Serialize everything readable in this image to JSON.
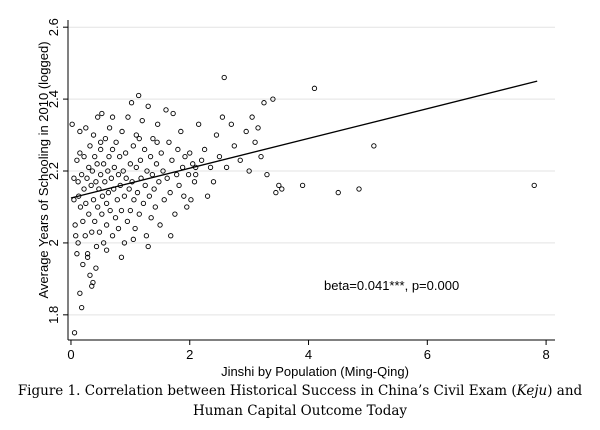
{
  "chart_data": {
    "type": "scatter",
    "xlabel": "Jinshi by Population (Ming-Qing)",
    "ylabel": "Average Years of Schooling in 2010 (logged)",
    "xlim": [
      -0.05,
      8.15
    ],
    "ylim": [
      1.73,
      2.62
    ],
    "xticks": [
      0,
      2,
      4,
      6,
      8
    ],
    "yticks": [
      1.8,
      2,
      2.2,
      2.4,
      2.6
    ],
    "ytick_labels": [
      "1.8",
      "2",
      "2.2",
      "2.4",
      "2.6"
    ],
    "xtick_labels": [
      "0",
      "2",
      "4",
      "6",
      "8"
    ],
    "grid": "horizontal",
    "annotation": "beta=0.041***, p=0.000",
    "fit_line": {
      "x": [
        0,
        7.85
      ],
      "y": [
        2.125,
        2.45
      ]
    },
    "points": [
      [
        0.02,
        2.33
      ],
      [
        0.05,
        2.18
      ],
      [
        0.05,
        2.12
      ],
      [
        0.07,
        2.05
      ],
      [
        0.08,
        2.02
      ],
      [
        0.1,
        1.97
      ],
      [
        0.1,
        2.23
      ],
      [
        0.12,
        2.17
      ],
      [
        0.12,
        2.0
      ],
      [
        0.13,
        2.13
      ],
      [
        0.15,
        1.86
      ],
      [
        0.15,
        2.25
      ],
      [
        0.16,
        2.1
      ],
      [
        0.18,
        2.19
      ],
      [
        0.2,
        2.06
      ],
      [
        0.2,
        1.94
      ],
      [
        0.22,
        2.24
      ],
      [
        0.22,
        2.15
      ],
      [
        0.24,
        2.02
      ],
      [
        0.25,
        2.32
      ],
      [
        0.25,
        2.11
      ],
      [
        0.27,
        2.18
      ],
      [
        0.28,
        1.97
      ],
      [
        0.3,
        2.21
      ],
      [
        0.3,
        2.08
      ],
      [
        0.32,
        2.27
      ],
      [
        0.32,
        1.91
      ],
      [
        0.34,
        2.16
      ],
      [
        0.35,
        2.03
      ],
      [
        0.36,
        2.2
      ],
      [
        0.37,
        1.89
      ],
      [
        0.38,
        2.3
      ],
      [
        0.38,
        2.12
      ],
      [
        0.4,
        2.24
      ],
      [
        0.4,
        2.06
      ],
      [
        0.42,
        2.17
      ],
      [
        0.43,
        1.99
      ],
      [
        0.44,
        2.22
      ],
      [
        0.45,
        2.35
      ],
      [
        0.45,
        2.1
      ],
      [
        0.47,
        2.15
      ],
      [
        0.48,
        2.03
      ],
      [
        0.5,
        2.26
      ],
      [
        0.5,
        2.19
      ],
      [
        0.52,
        2.08
      ],
      [
        0.52,
        2.36
      ],
      [
        0.53,
        2.13
      ],
      [
        0.55,
        2.0
      ],
      [
        0.55,
        2.22
      ],
      [
        0.57,
        2.17
      ],
      [
        0.58,
        2.29
      ],
      [
        0.6,
        2.11
      ],
      [
        0.6,
        2.05
      ],
      [
        0.62,
        2.2
      ],
      [
        0.63,
        2.14
      ],
      [
        0.64,
        2.24
      ],
      [
        0.65,
        2.32
      ],
      [
        0.66,
        2.09
      ],
      [
        0.68,
        2.18
      ],
      [
        0.7,
        2.02
      ],
      [
        0.7,
        2.26
      ],
      [
        0.72,
        2.15
      ],
      [
        0.73,
        2.21
      ],
      [
        0.75,
        2.07
      ],
      [
        0.76,
        2.28
      ],
      [
        0.78,
        2.12
      ],
      [
        0.8,
        2.19
      ],
      [
        0.8,
        2.04
      ],
      [
        0.82,
        2.24
      ],
      [
        0.83,
        2.16
      ],
      [
        0.85,
        2.09
      ],
      [
        0.86,
        2.31
      ],
      [
        0.88,
        2.2
      ],
      [
        0.9,
        2.13
      ],
      [
        0.9,
        2.0
      ],
      [
        0.92,
        2.25
      ],
      [
        0.93,
        2.18
      ],
      [
        0.95,
        2.06
      ],
      [
        0.96,
        2.35
      ],
      [
        0.98,
        2.15
      ],
      [
        1.0,
        2.22
      ],
      [
        1.0,
        2.09
      ],
      [
        1.02,
        2.39
      ],
      [
        1.03,
        2.17
      ],
      [
        1.05,
        2.27
      ],
      [
        1.06,
        2.12
      ],
      [
        1.08,
        2.04
      ],
      [
        1.1,
        2.21
      ],
      [
        1.1,
        2.3
      ],
      [
        1.12,
        2.14
      ],
      [
        1.14,
        2.41
      ],
      [
        1.15,
        2.08
      ],
      [
        1.17,
        2.23
      ],
      [
        1.18,
        2.18
      ],
      [
        1.2,
        2.34
      ],
      [
        1.22,
        2.11
      ],
      [
        1.24,
        2.26
      ],
      [
        1.25,
        2.16
      ],
      [
        1.27,
        2.02
      ],
      [
        1.28,
        2.2
      ],
      [
        1.3,
        2.38
      ],
      [
        1.32,
        2.13
      ],
      [
        1.34,
        2.24
      ],
      [
        1.35,
        2.07
      ],
      [
        1.37,
        2.19
      ],
      [
        1.38,
        2.29
      ],
      [
        1.4,
        2.15
      ],
      [
        1.42,
        2.1
      ],
      [
        1.44,
        2.22
      ],
      [
        1.46,
        2.33
      ],
      [
        1.48,
        2.17
      ],
      [
        1.5,
        2.05
      ],
      [
        1.52,
        2.25
      ],
      [
        1.55,
        2.2
      ],
      [
        1.57,
        2.12
      ],
      [
        1.6,
        2.37
      ],
      [
        1.62,
        2.18
      ],
      [
        1.65,
        2.28
      ],
      [
        1.67,
        2.14
      ],
      [
        1.7,
        2.23
      ],
      [
        1.72,
        2.36
      ],
      [
        1.75,
        2.08
      ],
      [
        1.78,
        2.19
      ],
      [
        1.8,
        2.26
      ],
      [
        1.82,
        2.16
      ],
      [
        1.85,
        2.31
      ],
      [
        1.88,
        2.21
      ],
      [
        1.9,
        2.13
      ],
      [
        1.92,
        2.24
      ],
      [
        1.95,
        2.1
      ],
      [
        1.98,
        2.19
      ],
      [
        2.0,
        2.25
      ],
      [
        2.02,
        2.12
      ],
      [
        2.05,
        2.22
      ],
      [
        2.08,
        2.17
      ],
      [
        2.1,
        2.21
      ],
      [
        2.15,
        2.33
      ],
      [
        2.2,
        2.23
      ],
      [
        2.25,
        2.26
      ],
      [
        2.3,
        2.13
      ],
      [
        2.35,
        2.21
      ],
      [
        2.4,
        2.17
      ],
      [
        2.45,
        2.3
      ],
      [
        2.5,
        2.24
      ],
      [
        2.55,
        2.35
      ],
      [
        2.58,
        2.46
      ],
      [
        2.62,
        2.21
      ],
      [
        2.7,
        2.33
      ],
      [
        2.75,
        2.27
      ],
      [
        2.85,
        2.23
      ],
      [
        2.95,
        2.31
      ],
      [
        3.0,
        2.2
      ],
      [
        3.05,
        2.35
      ],
      [
        3.1,
        2.28
      ],
      [
        3.15,
        2.32
      ],
      [
        3.2,
        2.24
      ],
      [
        3.25,
        2.39
      ],
      [
        3.3,
        2.19
      ],
      [
        3.4,
        2.4
      ],
      [
        3.45,
        2.14
      ],
      [
        3.5,
        2.16
      ],
      [
        3.55,
        2.15
      ],
      [
        3.9,
        2.16
      ],
      [
        4.1,
        2.43
      ],
      [
        4.5,
        2.14
      ],
      [
        4.85,
        2.15
      ],
      [
        5.1,
        2.27
      ],
      [
        7.8,
        2.16
      ],
      [
        0.06,
        1.75
      ],
      [
        0.18,
        1.82
      ],
      [
        0.35,
        1.88
      ],
      [
        0.42,
        1.93
      ],
      [
        0.28,
        1.96
      ],
      [
        0.6,
        1.98
      ],
      [
        0.85,
        1.96
      ],
      [
        1.05,
        2.01
      ],
      [
        1.3,
        1.99
      ],
      [
        0.15,
        2.31
      ],
      [
        0.5,
        2.28
      ],
      [
        0.7,
        2.35
      ],
      [
        1.15,
        2.29
      ],
      [
        1.45,
        2.28
      ],
      [
        1.68,
        2.02
      ],
      [
        2.1,
        2.19
      ]
    ]
  },
  "caption": {
    "line1_pre": "Figure 1. Correlation between Historical Success in China’s Civil Exam (",
    "line1_em": "Keju",
    "line1_post": ") and",
    "line2": "Human Capital Outcome Today"
  }
}
